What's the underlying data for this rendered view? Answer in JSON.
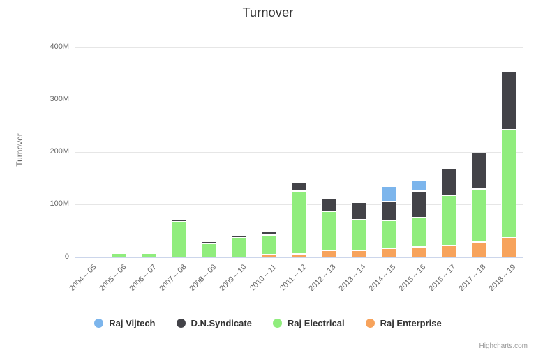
{
  "credits": "Highcharts.com",
  "chart_data": {
    "type": "bar",
    "subtype": "stacked-column",
    "title": "Turnover",
    "xlabel": "",
    "ylabel": "Turnover",
    "value_unit": "M (millions)",
    "ylim": [
      0,
      400
    ],
    "yticks": [
      0,
      100,
      200,
      300,
      400
    ],
    "ytick_labels": [
      "0",
      "100M",
      "200M",
      "300M",
      "400M"
    ],
    "grid": "horizontal",
    "legend_position": "bottom",
    "categories": [
      "2004 – 05",
      "2005 – 06",
      "2006 – 07",
      "2007 – 08",
      "2008 – 09",
      "2009 – 10",
      "2010 – 11",
      "2011 – 12",
      "2012 – 13",
      "2013 – 14",
      "2014 – 15",
      "2015 – 16",
      "2016 – 17",
      "2017 – 18",
      "2018 – 19"
    ],
    "series": [
      {
        "name": "Raj Vijtech",
        "color": "#7cb5ec",
        "values": [
          0,
          0,
          0,
          0,
          0,
          0,
          0,
          0,
          0,
          0,
          29,
          20,
          4,
          0,
          4
        ]
      },
      {
        "name": "D.N.Syndicate",
        "color": "#434348",
        "values": [
          0,
          0,
          0,
          5,
          5,
          5,
          6,
          16,
          24,
          33,
          37,
          50,
          51,
          69,
          112
        ]
      },
      {
        "name": "Raj Electrical",
        "color": "#90ed7d",
        "values": [
          0,
          8,
          8,
          68,
          26,
          37,
          38,
          120,
          75,
          59,
          53,
          56,
          97,
          102,
          207
        ]
      },
      {
        "name": "Raj Enterprise",
        "color": "#f7a35c",
        "values": [
          0,
          0,
          0,
          0,
          0,
          0,
          5,
          7,
          13,
          13,
          17,
          20,
          22,
          29,
          37
        ]
      }
    ],
    "stack_order_bottom_to_top": [
      "Raj Enterprise",
      "Raj Electrical",
      "D.N.Syndicate",
      "Raj Vijtech"
    ],
    "totals": [
      0,
      8,
      8,
      73,
      31,
      42,
      49,
      143,
      112,
      105,
      136,
      146,
      174,
      200,
      360
    ],
    "colors": {
      "title_text": "#333333",
      "axis_text": "#666666",
      "gridline": "#e6e6e6",
      "axis_line": "#ccd6eb",
      "legend_text": "#333333",
      "credits_text": "#999999",
      "background": "#ffffff",
      "segment_border": "#ffffff"
    }
  }
}
